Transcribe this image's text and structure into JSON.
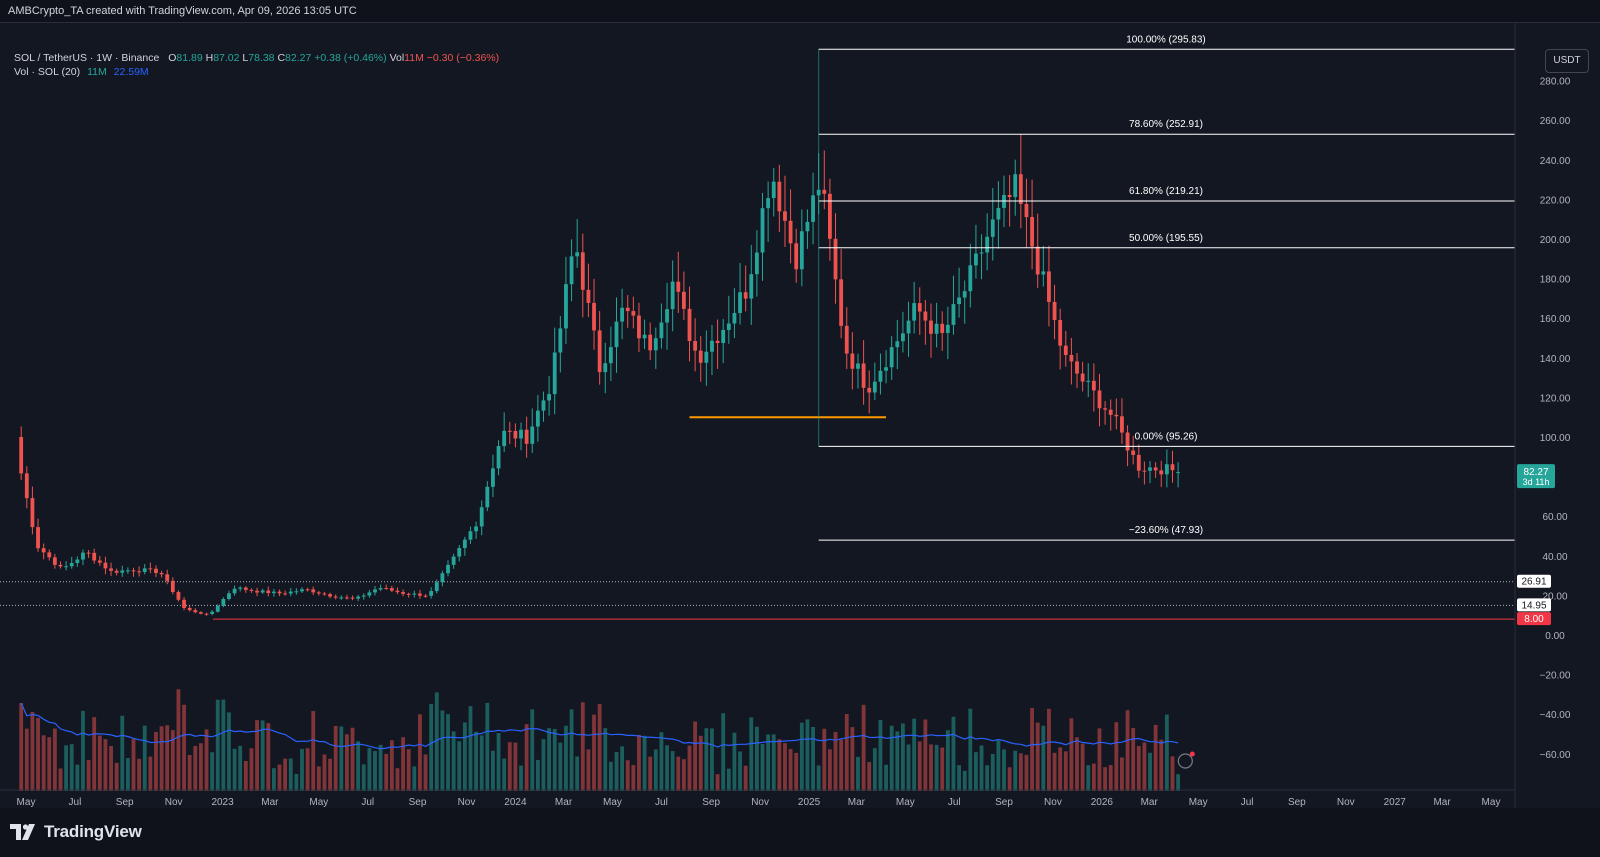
{
  "header": {
    "attribution": "AMBCrypto_TA created with TradingView.com, Apr 09, 2026 13:05 UTC"
  },
  "legend": {
    "symbol": "SOL / TetherUS · 1W · Binance",
    "o_label": "O",
    "o_value": "81.89",
    "h_label": "H",
    "h_value": "87.02",
    "l_label": "L",
    "l_value": "78.38",
    "c_label": "C",
    "c_value": "82.27",
    "change": "+0.38 (+0.46%)",
    "vol_label": "Vol",
    "vol_value": "11M",
    "vol_change": "−0.30 (−0.36%)",
    "vol_ma_label": "Vol · SOL (20)",
    "vol_ma_value1": "11M",
    "vol_ma_value2": "22.59M"
  },
  "currency_button": "USDT",
  "colors": {
    "background": "#131722",
    "up": "#26a69a",
    "down": "#ef5350",
    "fib_line": "#ffffff",
    "support_line": "#ff9800",
    "low_line": "#f23645",
    "volume_ma": "#2962ff"
  },
  "price_axis": {
    "ticks": [
      "280.00",
      "260.00",
      "240.00",
      "220.00",
      "200.00",
      "180.00",
      "160.00",
      "140.00",
      "120.00",
      "100.00",
      "60.00",
      "40.00",
      "20.00",
      "0.00",
      "−20.00",
      "−40.00",
      "−60.00"
    ],
    "current_price": "82.27",
    "countdown": "3d 11h",
    "marker_26": "26.91",
    "marker_15": "14.95",
    "marker_8": "8.00"
  },
  "time_axis": {
    "labels": [
      "May",
      "Jul",
      "Sep",
      "Nov",
      "2023",
      "Mar",
      "May",
      "Jul",
      "Sep",
      "Nov",
      "2024",
      "Mar",
      "May",
      "Jul",
      "Sep",
      "Nov",
      "2025",
      "Mar",
      "May",
      "Jul",
      "Sep",
      "Nov",
      "2026",
      "Mar",
      "May",
      "Jul",
      "Sep",
      "Nov",
      "2027",
      "Mar",
      "May"
    ]
  },
  "fibonacci": {
    "levels": [
      {
        "label": "100.00% (295.83)",
        "price": 295.83
      },
      {
        "label": "78.60% (252.91)",
        "price": 252.91
      },
      {
        "label": "61.80% (219.21)",
        "price": 219.21
      },
      {
        "label": "50.00% (195.55)",
        "price": 195.55
      },
      {
        "label": "0.00% (95.26)",
        "price": 95.26
      },
      {
        "label": "−23.60% (47.93)",
        "price": 47.93
      }
    ]
  },
  "lines": {
    "support_price": 110,
    "low_price": 8,
    "dotted_prices": [
      26.91,
      14.95
    ]
  },
  "chart_data": {
    "type": "candlestick",
    "title": "SOL / TetherUS · 1W · Binance",
    "interval": "1W",
    "ylim": [
      -65,
      305
    ],
    "y_scale": "linear",
    "grid": false,
    "x_range": [
      "2022-05",
      "2027-06"
    ],
    "series": [
      {
        "name": "SOL / TetherUS",
        "type": "candlestick",
        "monthly_close": [
          [
            "2022-04",
            100
          ],
          [
            "2022-05",
            45
          ],
          [
            "2022-06",
            33
          ],
          [
            "2022-07",
            42
          ],
          [
            "2022-08",
            32
          ],
          [
            "2022-09",
            33
          ],
          [
            "2022-10",
            32
          ],
          [
            "2022-11",
            13
          ],
          [
            "2022-12",
            10
          ],
          [
            "2023-01",
            24
          ],
          [
            "2023-02",
            22
          ],
          [
            "2023-03",
            21
          ],
          [
            "2023-04",
            23
          ],
          [
            "2023-05",
            20
          ],
          [
            "2023-06",
            18
          ],
          [
            "2023-07",
            24
          ],
          [
            "2023-08",
            21
          ],
          [
            "2023-09",
            20
          ],
          [
            "2023-10",
            38
          ],
          [
            "2023-11",
            58
          ],
          [
            "2023-12",
            102
          ],
          [
            "2024-01",
            100
          ],
          [
            "2024-02",
            128
          ],
          [
            "2024-03",
            200
          ],
          [
            "2024-04",
            135
          ],
          [
            "2024-05",
            165
          ],
          [
            "2024-06",
            145
          ],
          [
            "2024-07",
            178
          ],
          [
            "2024-08",
            140
          ],
          [
            "2024-09",
            155
          ],
          [
            "2024-10",
            175
          ],
          [
            "2024-11",
            235
          ],
          [
            "2024-12",
            190
          ],
          [
            "2025-01",
            230
          ],
          [
            "2025-02",
            145
          ],
          [
            "2025-03",
            125
          ],
          [
            "2025-04",
            145
          ],
          [
            "2025-05",
            165
          ],
          [
            "2025-06",
            150
          ],
          [
            "2025-07",
            175
          ],
          [
            "2025-08",
            205
          ],
          [
            "2025-09",
            225
          ],
          [
            "2025-10",
            185
          ],
          [
            "2025-11",
            140
          ],
          [
            "2025-12",
            125
          ],
          [
            "2026-01",
            110
          ],
          [
            "2026-02",
            85
          ],
          [
            "2026-03",
            84
          ],
          [
            "2026-04",
            82.27
          ]
        ]
      },
      {
        "name": "Vol · SOL (20)",
        "type": "bar"
      }
    ],
    "last": {
      "open": 81.89,
      "high": 87.02,
      "low": 78.38,
      "close": 82.27
    }
  }
}
